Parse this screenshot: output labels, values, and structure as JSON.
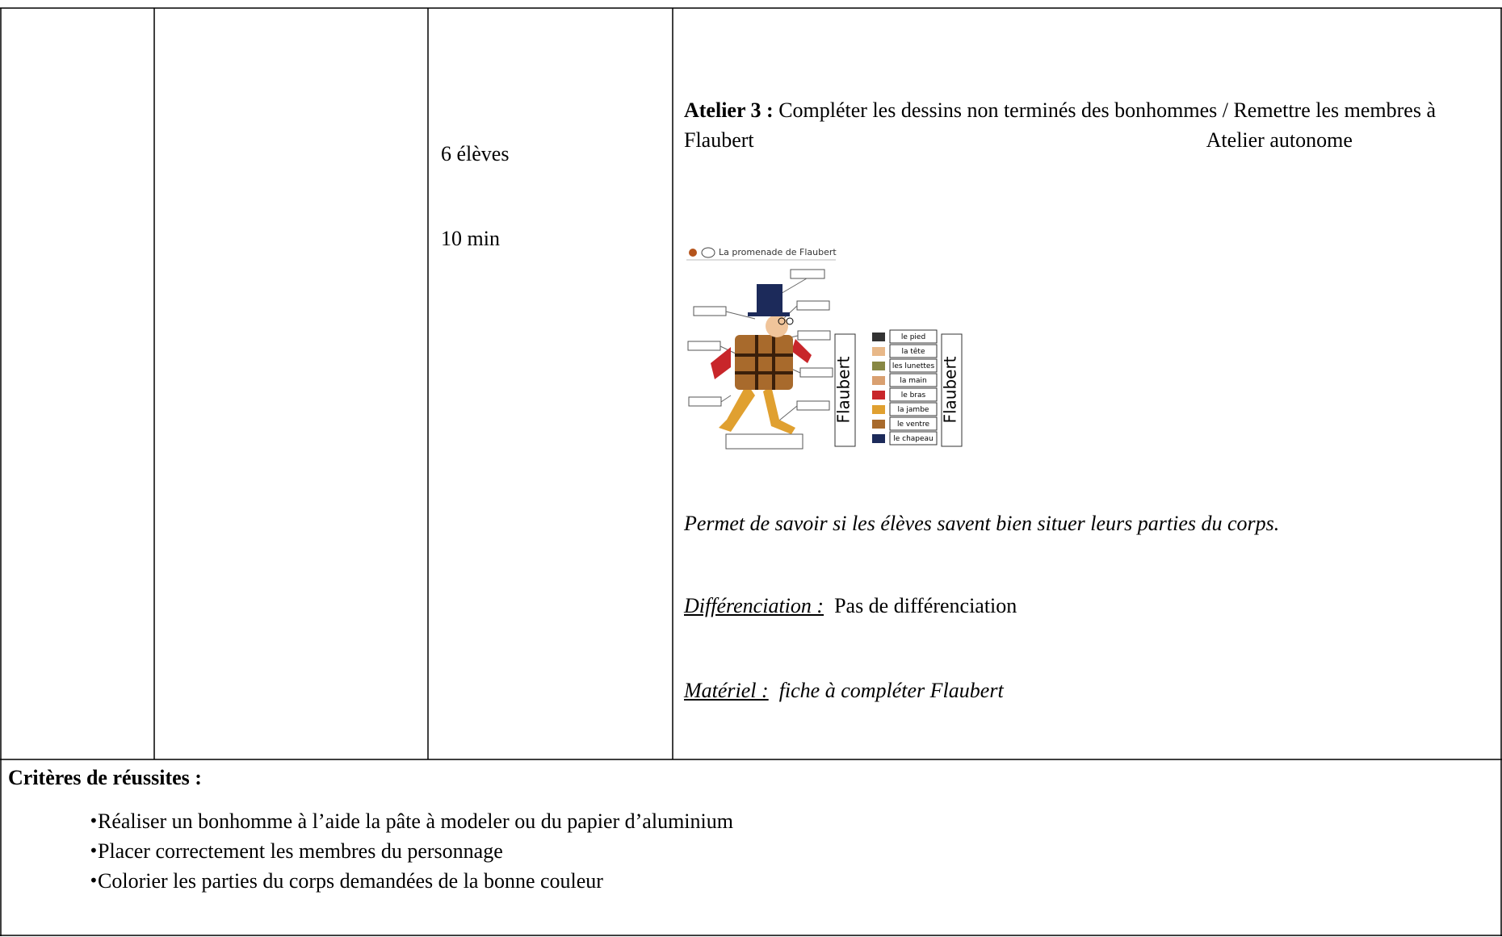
{
  "row": {
    "group": "6 élèves",
    "duration": "10 min",
    "atelier_label": "Atelier 3 :",
    "atelier_text": "Compléter les dessins non terminés des bonhommes / Remettre les membres à Flaubert",
    "atelier_mode": "Atelier autonome",
    "worksheet": {
      "title": "La promenade de Flaubert",
      "name": "Flaubert",
      "labels": [
        "le pied",
        "la tête",
        "les lunettes",
        "la main",
        "le bras",
        "la jambe",
        "le ventre",
        "le chapeau"
      ]
    },
    "purpose": "Permet de savoir si les élèves savent bien situer leurs parties du corps.",
    "differentiation_label": "Différenciation :",
    "differentiation": "Pas de différenciation",
    "material_label": "Matériel :",
    "material": "fiche à compléter Flaubert"
  },
  "criteria": {
    "title": "Critères de réussites :",
    "items": [
      "Réaliser un bonhomme à l’aide la pâte à modeler ou du papier d’aluminium",
      "Placer correctement les membres du personnage",
      "Colorier les parties du corps demandées de la bonne couleur"
    ]
  }
}
